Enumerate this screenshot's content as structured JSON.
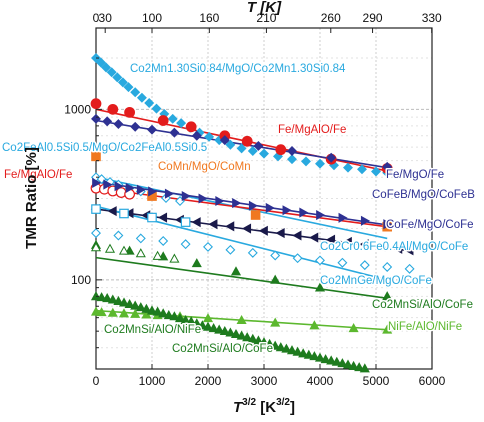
{
  "chart_data": {
    "type": "scatter",
    "x_scale": "linear",
    "y_scale": "log",
    "xlim": [
      0,
      6000
    ],
    "ylim": [
      30,
      3000
    ],
    "top_xlim_K": [
      0,
      330
    ],
    "xlabel_base": "T",
    "xlabel_exp": "3/2",
    "xlabel_unit_base": "K",
    "xlabel_unit_exp": "3/2",
    "top_xlabel": "T [K]",
    "ylabel": "TMR Ratio [%]",
    "xticks": [
      "0",
      "1000",
      "2000",
      "3000",
      "4000",
      "5000",
      "6000"
    ],
    "top_xticks": [
      "0",
      "30",
      "100",
      "160",
      "210",
      "260",
      "290",
      "330"
    ],
    "yticks": [
      {
        "value": 100,
        "label": "100"
      },
      {
        "value": 1000,
        "label": "1000"
      }
    ],
    "grid": true,
    "legend": "labels next to each series",
    "series": [
      {
        "name": "Co2Mn1.30Si0.84/MgO/Co2Mn1.30Si0.84",
        "color": "#29a9df",
        "marker": "diamond",
        "fill": true,
        "points": [
          [
            0,
            2000
          ],
          [
            90,
            1880
          ],
          [
            180,
            1760
          ],
          [
            280,
            1650
          ],
          [
            380,
            1540
          ],
          [
            480,
            1440
          ],
          [
            580,
            1350
          ],
          [
            700,
            1260
          ],
          [
            820,
            1170
          ],
          [
            950,
            1090
          ],
          [
            1080,
            1010
          ],
          [
            1220,
            940
          ],
          [
            1370,
            880
          ],
          [
            1520,
            830
          ],
          [
            1680,
            780
          ],
          [
            1850,
            730
          ],
          [
            2020,
            690
          ],
          [
            2200,
            660
          ],
          [
            2400,
            620
          ],
          [
            2600,
            590
          ],
          [
            2800,
            570
          ],
          [
            3000,
            550
          ],
          [
            3250,
            530
          ],
          [
            3500,
            510
          ],
          [
            3750,
            495
          ],
          [
            4000,
            480
          ],
          [
            4250,
            470
          ],
          [
            4500,
            455
          ],
          [
            4750,
            445
          ],
          [
            5000,
            432
          ],
          [
            5200,
            425
          ]
        ]
      },
      {
        "name": "Co2FeAl0.5Si0.5/MgO/Co2FeAl0.5Si0.5",
        "color": "#29a9df",
        "marker": "diamond",
        "fill": false,
        "points": [
          [
            0,
            400
          ],
          [
            100,
            390
          ],
          [
            250,
            375
          ],
          [
            400,
            362
          ],
          [
            600,
            345
          ],
          [
            800,
            330
          ],
          [
            1000,
            318
          ],
          [
            1250,
            302
          ],
          [
            1500,
            290
          ]
        ],
        "fit": [
          [
            0,
            400
          ],
          [
            5200,
            175
          ]
        ]
      },
      {
        "name": "Fe/MgAlO/Fe",
        "color": "#e31c1c",
        "marker": "circle",
        "fill": true,
        "label_index": 0,
        "points": [
          [
            0,
            1080
          ],
          [
            300,
            1000
          ],
          [
            600,
            960
          ],
          [
            1200,
            860
          ],
          [
            1700,
            790
          ],
          [
            2300,
            700
          ],
          [
            2700,
            650
          ],
          [
            3300,
            580
          ],
          [
            4200,
            510
          ],
          [
            5200,
            450
          ]
        ],
        "fit": [
          [
            0,
            1000
          ],
          [
            5200,
            435
          ]
        ]
      },
      {
        "name": "Fe/MgAlO/Fe",
        "color": "#e31c1c",
        "marker": "circle",
        "fill": false,
        "label_index": 1,
        "points": [
          [
            0,
            345
          ],
          [
            150,
            340
          ],
          [
            300,
            332
          ],
          [
            450,
            325
          ],
          [
            600,
            318
          ]
        ],
        "fit": [
          [
            0,
            345
          ],
          [
            5200,
            205
          ]
        ]
      },
      {
        "name": "CoMn/MgO/CoMn",
        "color": "#f07820",
        "marker": "square",
        "fill": true,
        "points": [
          [
            0,
            530
          ],
          [
            1000,
            310
          ],
          [
            2850,
            240
          ],
          [
            5200,
            205
          ]
        ]
      },
      {
        "name": "Fe/MgO/Fe",
        "color": "#2e3192",
        "marker": "diamond",
        "fill": true,
        "points": [
          [
            0,
            880
          ],
          [
            200,
            850
          ],
          [
            400,
            820
          ],
          [
            700,
            790
          ],
          [
            1000,
            760
          ],
          [
            1400,
            730
          ],
          [
            1800,
            700
          ],
          [
            2300,
            660
          ],
          [
            2900,
            610
          ],
          [
            3500,
            570
          ],
          [
            4200,
            520
          ],
          [
            5200,
            460
          ]
        ],
        "fit": [
          [
            0,
            860
          ],
          [
            5200,
            455
          ]
        ]
      },
      {
        "name": "CoFeB/MgO/CoFeB",
        "color": "#2e3192",
        "marker": "triangle-right",
        "fill": true,
        "points": [
          [
            0,
            370
          ],
          [
            200,
            362
          ],
          [
            400,
            354
          ],
          [
            600,
            346
          ],
          [
            800,
            338
          ],
          [
            1000,
            330
          ],
          [
            1300,
            320
          ],
          [
            1600,
            310
          ],
          [
            1900,
            300
          ],
          [
            2200,
            290
          ],
          [
            2500,
            282
          ],
          [
            2800,
            272
          ],
          [
            3100,
            264
          ],
          [
            3400,
            256
          ],
          [
            3700,
            248
          ],
          [
            4000,
            240
          ],
          [
            4400,
            231
          ],
          [
            4800,
            222
          ],
          [
            5200,
            212
          ]
        ],
        "fit": [
          [
            0,
            375
          ],
          [
            5200,
            210
          ]
        ]
      },
      {
        "name": "CoFe/MgO/CoFe",
        "color": "#1a1a4a",
        "marker": "triangle-left",
        "fill": true,
        "points": [
          [
            0,
            260
          ],
          [
            300,
            253
          ],
          [
            600,
            246
          ],
          [
            900,
            239
          ],
          [
            1200,
            232
          ],
          [
            1500,
            225
          ],
          [
            1800,
            218
          ],
          [
            2100,
            212
          ],
          [
            2400,
            206
          ],
          [
            2700,
            200
          ],
          [
            3000,
            194
          ],
          [
            3300,
            188
          ],
          [
            3600,
            182
          ],
          [
            3900,
            177
          ],
          [
            4200,
            172
          ],
          [
            4500,
            167
          ],
          [
            4800,
            162
          ],
          [
            5100,
            157
          ],
          [
            5400,
            152
          ],
          [
            5600,
            149
          ]
        ],
        "fit": [
          [
            0,
            260
          ],
          [
            5600,
            148
          ]
        ]
      },
      {
        "name": "Co2Cr0.6Fe0.4Al/MgO/CoFe",
        "color": "#29a9df",
        "marker": "diamond",
        "fill": false,
        "points": [
          [
            0,
            188
          ],
          [
            400,
            182
          ],
          [
            800,
            175
          ],
          [
            1200,
            169
          ],
          [
            1600,
            162
          ],
          [
            2000,
            156
          ],
          [
            2400,
            150
          ],
          [
            2800,
            144
          ],
          [
            3200,
            139
          ],
          [
            3600,
            134
          ],
          [
            4000,
            130
          ],
          [
            4400,
            126
          ],
          [
            4800,
            122
          ],
          [
            5200,
            119
          ],
          [
            5600,
            116
          ]
        ]
      },
      {
        "name": "Co2MnGe/MgO/CoFe",
        "color": "#29a9df",
        "marker": "square",
        "fill": false,
        "points": [
          [
            0,
            260
          ],
          [
            500,
            245
          ],
          [
            1000,
            232
          ],
          [
            1600,
            218
          ]
        ],
        "fit": [
          [
            0,
            270
          ],
          [
            5200,
            100
          ]
        ]
      },
      {
        "name": "Co2MnSi/AlO/CoFe",
        "color": "#1e7b1e",
        "marker": "triangle",
        "fill": true,
        "label_index": 0,
        "points": [
          [
            0,
            160
          ],
          [
            600,
            148
          ],
          [
            1200,
            137
          ],
          [
            1800,
            125
          ],
          [
            2500,
            112
          ],
          [
            3200,
            100
          ],
          [
            4000,
            90
          ],
          [
            5200,
            80
          ]
        ],
        "fit": [
          [
            0,
            135
          ],
          [
            5200,
            78
          ]
        ]
      },
      {
        "name": "NiFe/AlO/NiFe",
        "color": "#5cb82e",
        "marker": "triangle",
        "fill": true,
        "points": [
          [
            0,
            65
          ],
          [
            100,
            64.5
          ],
          [
            300,
            64
          ],
          [
            500,
            63.5
          ],
          [
            700,
            63
          ],
          [
            900,
            62.5
          ],
          [
            1100,
            62
          ],
          [
            1500,
            61
          ],
          [
            2000,
            59.5
          ],
          [
            2600,
            58
          ],
          [
            3200,
            56
          ],
          [
            3900,
            54
          ],
          [
            4600,
            52
          ],
          [
            5200,
            51
          ]
        ],
        "fit": [
          [
            0,
            66
          ],
          [
            5200,
            51
          ]
        ]
      },
      {
        "name": "Co2MnSi/AlO/NiFe",
        "color": "#1e7b1e",
        "marker": "triangle",
        "fill": true,
        "label_index": 1,
        "points": [
          [
            0,
            80
          ],
          [
            100,
            79
          ],
          [
            200,
            78
          ],
          [
            300,
            76.5
          ],
          [
            400,
            75
          ],
          [
            500,
            73.5
          ],
          [
            600,
            72
          ],
          [
            700,
            70.5
          ],
          [
            800,
            69
          ],
          [
            900,
            67.5
          ],
          [
            1000,
            66
          ],
          [
            1100,
            65
          ],
          [
            1200,
            63.5
          ],
          [
            1300,
            62
          ],
          [
            1400,
            61
          ],
          [
            1500,
            59.5
          ],
          [
            1600,
            58
          ],
          [
            1700,
            57
          ],
          [
            1800,
            55.5
          ],
          [
            1900,
            54
          ],
          [
            2000,
            53
          ],
          [
            2100,
            52
          ],
          [
            2200,
            51
          ],
          [
            2300,
            50
          ],
          [
            2400,
            49
          ],
          [
            2500,
            48
          ],
          [
            2600,
            47
          ],
          [
            2700,
            46
          ],
          [
            2800,
            45
          ],
          [
            2900,
            44
          ],
          [
            3000,
            43
          ],
          [
            3100,
            42
          ],
          [
            3200,
            41
          ],
          [
            3300,
            40.2
          ],
          [
            3400,
            39.4
          ],
          [
            3500,
            38.6
          ],
          [
            3600,
            37.8
          ],
          [
            3700,
            37
          ],
          [
            3800,
            36.3
          ],
          [
            3900,
            35.6
          ],
          [
            4000,
            34.9
          ],
          [
            4100,
            34.2
          ],
          [
            4200,
            33.6
          ],
          [
            4300,
            33
          ],
          [
            4400,
            32.4
          ],
          [
            4500,
            31.8
          ],
          [
            4600,
            31.2
          ],
          [
            4700,
            30.7
          ],
          [
            4800,
            30.2
          ]
        ]
      },
      {
        "name": "Co2MnSi/AlO/CoFe",
        "color": "#1e7b1e",
        "marker": "triangle",
        "fill": false,
        "label_index": 1,
        "points": [
          [
            0,
            155
          ],
          [
            250,
            152
          ],
          [
            500,
            148
          ],
          [
            800,
            143
          ],
          [
            1100,
            138
          ],
          [
            1400,
            133
          ]
        ]
      }
    ],
    "annotations": [
      {
        "text": "Co2Mn1.30Si0.84/MgO/Co2Mn1.30Si0.84",
        "color": "#29a9df",
        "subs": [
          [
            "Co",
            ""
          ],
          [
            "2",
            ""
          ],
          [
            "Mn",
            ""
          ],
          [
            "1.30",
            ""
          ],
          [
            "Si",
            ""
          ],
          [
            "0.84",
            ""
          ],
          [
            "/MgO/Co",
            ""
          ],
          [
            "2",
            ""
          ],
          [
            "Mn",
            ""
          ],
          [
            "1.30",
            ""
          ],
          [
            "Si",
            ""
          ],
          [
            "0.84",
            ""
          ]
        ]
      },
      {
        "text": "Co2FeAl0.5Si0.5/MgO/Co2FeAl0.5Si0.5",
        "color": "#29a9df"
      },
      {
        "text": "Fe/MgAlO/Fe",
        "color": "#e31c1c"
      },
      {
        "text": "CoMn/MgO/CoMn",
        "color": "#f07820"
      },
      {
        "text": "Fe/MgAlO/Fe",
        "color": "#e31c1c"
      },
      {
        "text": "Fe/MgO/Fe",
        "color": "#2e3192"
      },
      {
        "text": "CoFeB/MgO/CoFeB",
        "color": "#2e3192"
      },
      {
        "text": "CoFe/MgO/CoFe",
        "color": "#2e3192"
      },
      {
        "text": "Co2Cr0.6Fe0.4Al/MgO/CoFe",
        "color": "#29a9df"
      },
      {
        "text": "Co2MnGe/MgO/CoFe",
        "color": "#29a9df"
      },
      {
        "text": "Co2MnSi/AlO/CoFe",
        "color": "#1e7b1e"
      },
      {
        "text": "NiFe/AlO/NiFe",
        "color": "#5cb82e"
      },
      {
        "text": "Co2MnSi/AlO/NiFe",
        "color": "#1e7b1e"
      },
      {
        "text": "Co2MnSi/AlO/CoFe",
        "color": "#1e7b1e"
      }
    ]
  }
}
